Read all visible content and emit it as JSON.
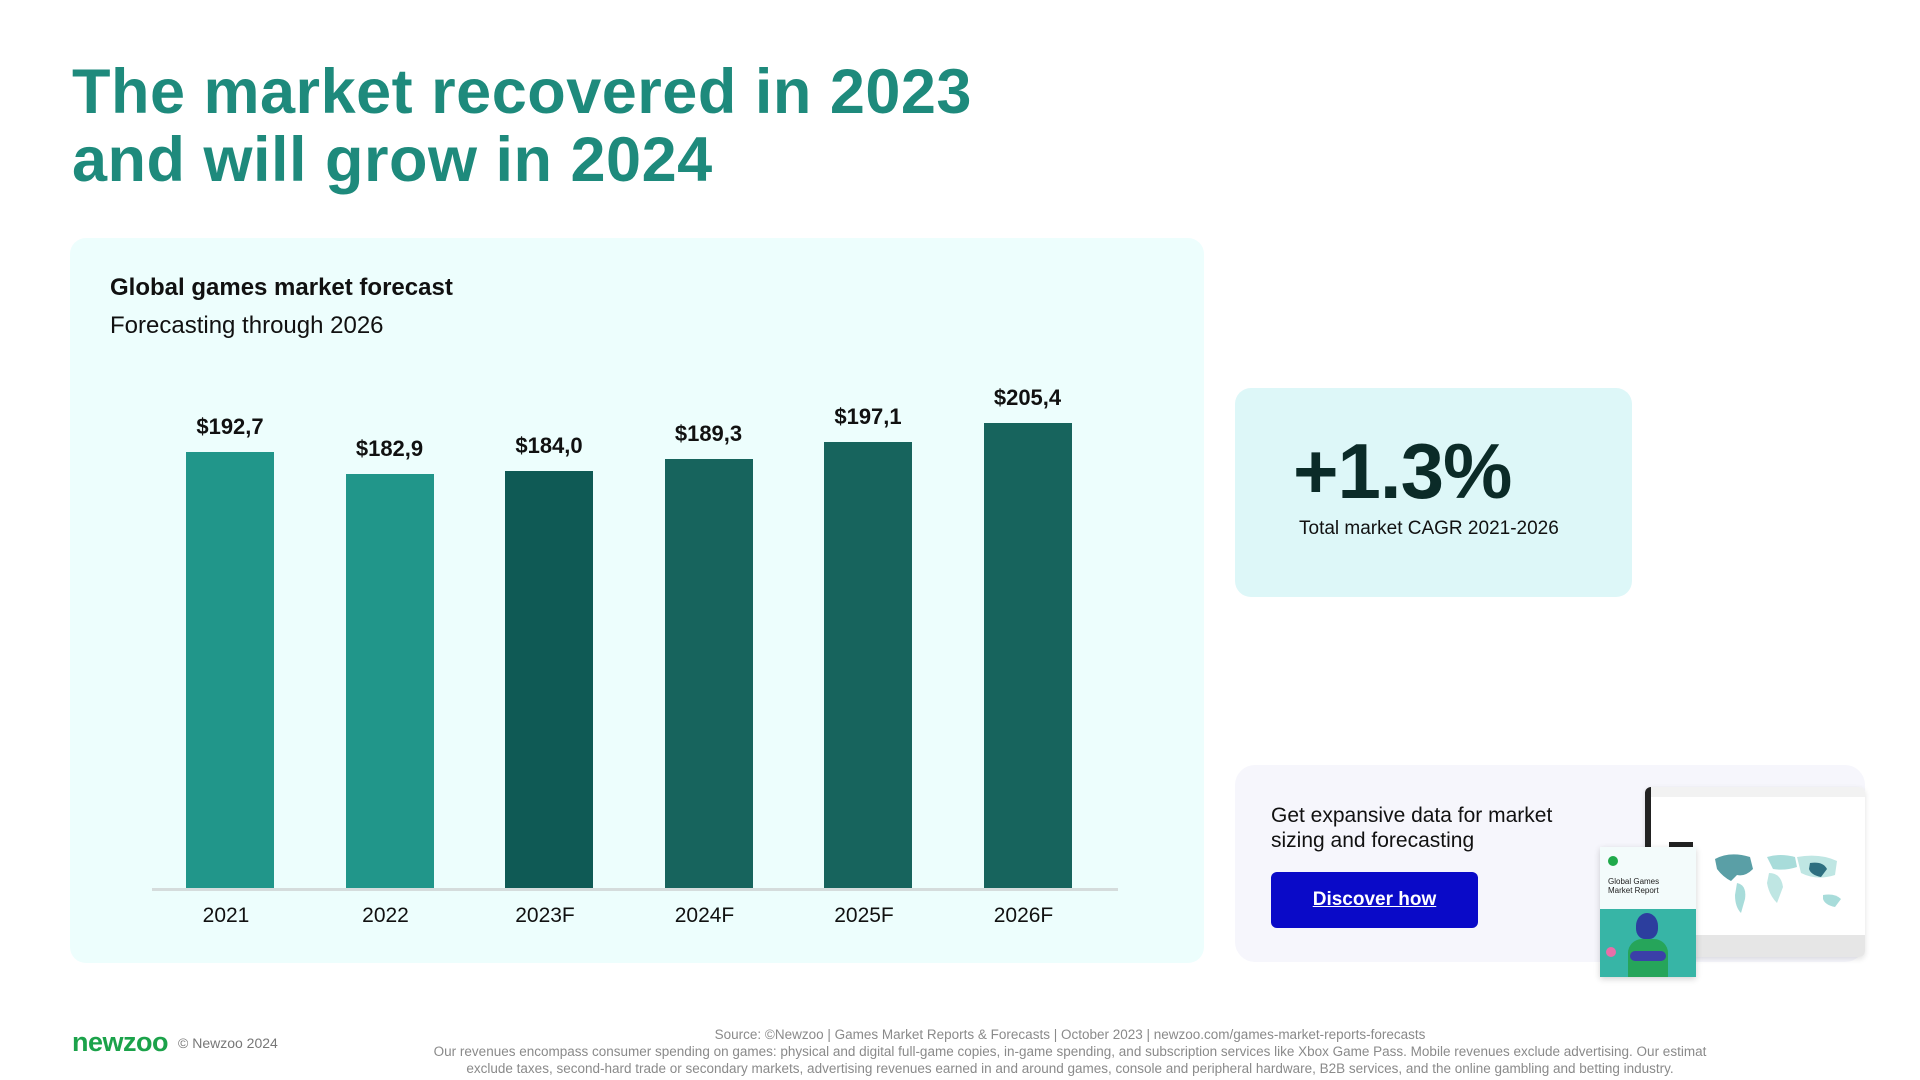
{
  "header": {
    "title_line1": "The market recovered in 2023",
    "title_line2": "and will grow in 2024"
  },
  "chart_card": {
    "title": "Global games market forecast",
    "subtitle": "Forecasting through 2026"
  },
  "chart_data": {
    "type": "bar",
    "title": "Global games market forecast",
    "subtitle": "Forecasting through 2026",
    "categories": [
      "2021",
      "2022",
      "2023F",
      "2024F",
      "2025F",
      "2026F"
    ],
    "values": [
      192.7,
      182.9,
      184.0,
      189.3,
      197.1,
      205.4
    ],
    "value_labels": [
      "$192,7",
      "$182,9",
      "$184,0",
      "$189,3",
      "$197,1",
      "$205,4"
    ],
    "bar_colors": [
      "#21968A",
      "#21968A",
      "#0F5A55",
      "#17645D",
      "#17645D",
      "#17645D"
    ],
    "xlabel": "",
    "ylabel": "",
    "ylim": [
      0,
      210
    ],
    "grid": false,
    "legend": null,
    "unit": "USD billions"
  },
  "cagr_card": {
    "value": "+1.3%",
    "label": "Total market CAGR 2021-2026"
  },
  "promo_card": {
    "text": "Get expansive data for market sizing and forecasting",
    "button_label": "Discover how",
    "booklet_title_line1": "Global Games",
    "booklet_title_line2": "Market Report",
    "button_color": "#0A0AC8"
  },
  "footer": {
    "logo": "newzoo",
    "copyright": "© Newzoo 2024",
    "source": "Source: ©Newzoo | Games Market Reports & Forecasts | October 2023 | newzoo.com/games-market-reports-forecasts",
    "note_line1": "Our revenues encompass consumer spending on games: physical and digital full-game copies, in-game spending, and subscription services like Xbox Game Pass. Mobile revenues exclude advertising. Our estimat",
    "note_line2": "exclude taxes, second-hard trade or secondary markets, advertising revenues earned in and around games, console and peripheral hardware, B2B services, and the online gambling and betting industry."
  },
  "colors": {
    "title": "#1E8A7C",
    "chart_bg": "#EDFEFD",
    "cagr_bg": "#DDF7F8",
    "promo_bg": "#F6F6FC",
    "logo_green": "#1BA24A"
  }
}
